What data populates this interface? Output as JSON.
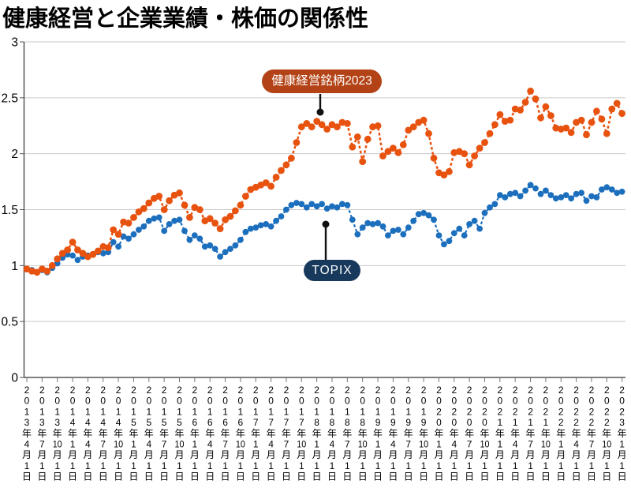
{
  "page": {
    "title": "健康経営と企業業績・株価の関係性",
    "background": "#ffffff"
  },
  "callouts": {
    "kenko": {
      "label": "健康経営銘柄2023",
      "bg": "#b34316",
      "text_color": "#ffffff"
    },
    "topix": {
      "label": "TOPIX",
      "bg": "#17395c",
      "text_color": "#ffffff"
    }
  },
  "chart_data": {
    "type": "line",
    "title": "健康経営と企業業績・株価の関係性",
    "x_interval": "monthly",
    "x_start_month": "2013-04",
    "x_end_month": "2023-01",
    "marker": "circle",
    "line_style": "dashed",
    "grid": true,
    "ylim": [
      0,
      3
    ],
    "y_ticks": [
      0,
      0.5,
      1,
      1.5,
      2,
      2.5,
      3
    ],
    "y_tick_labels": [
      "0",
      "0.5",
      "1",
      "1.5",
      "2",
      "2.5",
      "3"
    ],
    "x_tick_labels": [
      "2013年4月1日",
      "2013年7月1日",
      "2013年10月1日",
      "2014年1月1日",
      "2014年4月1日",
      "2014年7月1日",
      "2014年10月1日",
      "2015年1月1日",
      "2015年4月1日",
      "2015年7月1日",
      "2015年10月1日",
      "2016年1月1日",
      "2016年4月1日",
      "2016年7月1日",
      "2016年10月1日",
      "2017年1月1日",
      "2017年4月1日",
      "2017年7月1日",
      "2017年10月1日",
      "2018年1月1日",
      "2018年4月1日",
      "2018年7月1日",
      "2018年10月1日",
      "2019年1月1日",
      "2019年4月1日",
      "2019年7月1日",
      "2019年10月1日",
      "2020年1月1日",
      "2020年4月1日",
      "2020年7月1日",
      "2020年10月1日",
      "2021年1月1日",
      "2021年4月1日",
      "2021年7月1日",
      "2021年10月1日",
      "2022年1月1日",
      "2022年4月1日",
      "2022年7月1日",
      "2022年10月1日",
      "2023年1月1日"
    ],
    "series": [
      {
        "name": "TOPIX",
        "color": "#1c6fbd",
        "values": [
          0.97,
          0.96,
          0.94,
          0.96,
          0.94,
          0.98,
          1.02,
          1.07,
          1.1,
          1.09,
          1.05,
          1.08,
          1.09,
          1.1,
          1.12,
          1.11,
          1.12,
          1.21,
          1.17,
          1.26,
          1.24,
          1.28,
          1.32,
          1.35,
          1.4,
          1.42,
          1.43,
          1.31,
          1.37,
          1.4,
          1.41,
          1.31,
          1.23,
          1.27,
          1.24,
          1.17,
          1.18,
          1.15,
          1.08,
          1.12,
          1.15,
          1.18,
          1.23,
          1.3,
          1.33,
          1.34,
          1.36,
          1.37,
          1.35,
          1.4,
          1.44,
          1.5,
          1.54,
          1.56,
          1.55,
          1.52,
          1.55,
          1.53,
          1.55,
          1.51,
          1.53,
          1.52,
          1.55,
          1.54,
          1.41,
          1.28,
          1.34,
          1.38,
          1.37,
          1.38,
          1.35,
          1.27,
          1.31,
          1.32,
          1.28,
          1.34,
          1.4,
          1.46,
          1.47,
          1.45,
          1.41,
          1.27,
          1.19,
          1.22,
          1.29,
          1.33,
          1.27,
          1.37,
          1.4,
          1.33,
          1.47,
          1.52,
          1.55,
          1.63,
          1.61,
          1.64,
          1.65,
          1.62,
          1.67,
          1.72,
          1.69,
          1.64,
          1.67,
          1.63,
          1.6,
          1.61,
          1.63,
          1.6,
          1.64,
          1.65,
          1.58,
          1.62,
          1.61,
          1.68,
          1.7,
          1.68,
          1.65,
          1.66
        ]
      },
      {
        "name": "健康経営銘柄2023",
        "color": "#e8520f",
        "values": [
          0.97,
          0.95,
          0.94,
          0.97,
          0.95,
          1.0,
          1.06,
          1.11,
          1.14,
          1.21,
          1.14,
          1.11,
          1.08,
          1.1,
          1.13,
          1.17,
          1.16,
          1.32,
          1.28,
          1.39,
          1.38,
          1.43,
          1.48,
          1.51,
          1.56,
          1.6,
          1.62,
          1.5,
          1.58,
          1.63,
          1.65,
          1.54,
          1.43,
          1.52,
          1.5,
          1.4,
          1.42,
          1.38,
          1.33,
          1.41,
          1.44,
          1.49,
          1.54,
          1.62,
          1.68,
          1.7,
          1.72,
          1.74,
          1.71,
          1.79,
          1.85,
          1.9,
          1.96,
          2.1,
          2.24,
          2.27,
          2.24,
          2.29,
          2.26,
          2.22,
          2.26,
          2.24,
          2.28,
          2.27,
          2.06,
          2.15,
          1.93,
          2.13,
          2.24,
          2.25,
          1.98,
          2.02,
          2.05,
          2.01,
          2.08,
          2.21,
          2.24,
          2.28,
          2.3,
          2.18,
          1.96,
          1.83,
          1.81,
          1.84,
          2.01,
          2.02,
          2.0,
          1.9,
          1.98,
          2.05,
          2.1,
          2.18,
          2.26,
          2.35,
          2.29,
          2.3,
          2.4,
          2.39,
          2.46,
          2.56,
          2.49,
          2.32,
          2.42,
          2.34,
          2.23,
          2.22,
          2.23,
          2.19,
          2.28,
          2.3,
          2.17,
          2.28,
          2.38,
          2.31,
          2.18,
          2.4,
          2.45,
          2.36
        ]
      }
    ],
    "style": {
      "grid_color": "#c9c9c9",
      "axis_color": "#555555",
      "tick_color": "#777777",
      "label_color": "#000000"
    }
  }
}
